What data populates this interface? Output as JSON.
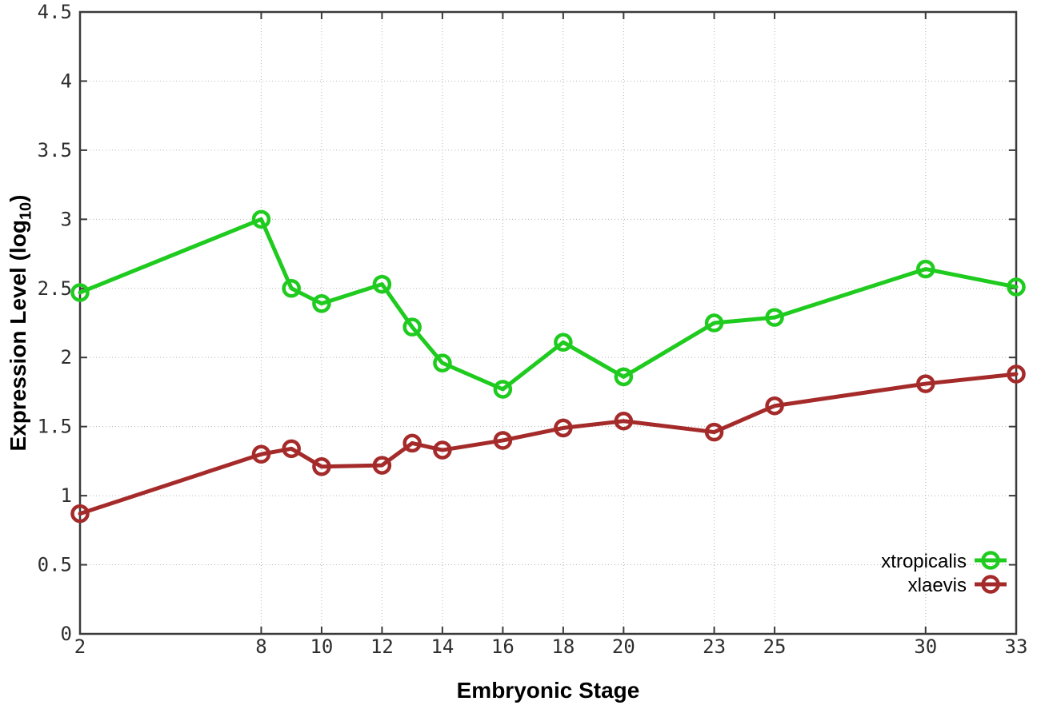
{
  "figure": {
    "background": "#ffffff",
    "border_color": "#3a3a3a",
    "grid_color": "#b5b5b5",
    "tick_color": "#3a3a3a"
  },
  "chart_data": {
    "type": "line",
    "title": "",
    "xlabel": "Embryonic Stage",
    "ylabel": "Expression Level (log10)",
    "ylabel_parts": {
      "prefix": "Expression Level (log",
      "subscript": "10",
      "suffix": ")"
    },
    "xlim": [
      2,
      33
    ],
    "ylim": [
      0,
      4.5
    ],
    "xticks": [
      2,
      8,
      10,
      12,
      14,
      16,
      18,
      20,
      23,
      25,
      30,
      33
    ],
    "xtick_labels": [
      "2",
      "8",
      "10",
      "12",
      "14",
      "16",
      "18",
      "20",
      "23",
      "25",
      "30",
      "33"
    ],
    "yticks": [
      0,
      0.5,
      1,
      1.5,
      2,
      2.5,
      3,
      3.5,
      4,
      4.5
    ],
    "ytick_labels": [
      "0",
      "0.5",
      "1",
      "1.5",
      "2",
      "2.5",
      "3",
      "3.5",
      "4",
      "4.5"
    ],
    "grid": true,
    "legend_position": "bottom-right",
    "x": [
      2,
      8,
      9,
      10,
      12,
      13,
      14,
      16,
      18,
      20,
      23,
      25,
      30,
      33
    ],
    "series": [
      {
        "name": "xtropicalis",
        "color": "#1ecb1e",
        "values": [
          2.47,
          3.0,
          2.5,
          2.39,
          2.53,
          2.22,
          1.96,
          1.77,
          2.11,
          1.86,
          2.25,
          2.29,
          2.64,
          2.51
        ]
      },
      {
        "name": "xlaevis",
        "color": "#a52a2a",
        "values": [
          0.87,
          1.3,
          1.34,
          1.21,
          1.22,
          1.38,
          1.33,
          1.4,
          1.49,
          1.54,
          1.46,
          1.65,
          1.81,
          1.88
        ]
      }
    ]
  }
}
